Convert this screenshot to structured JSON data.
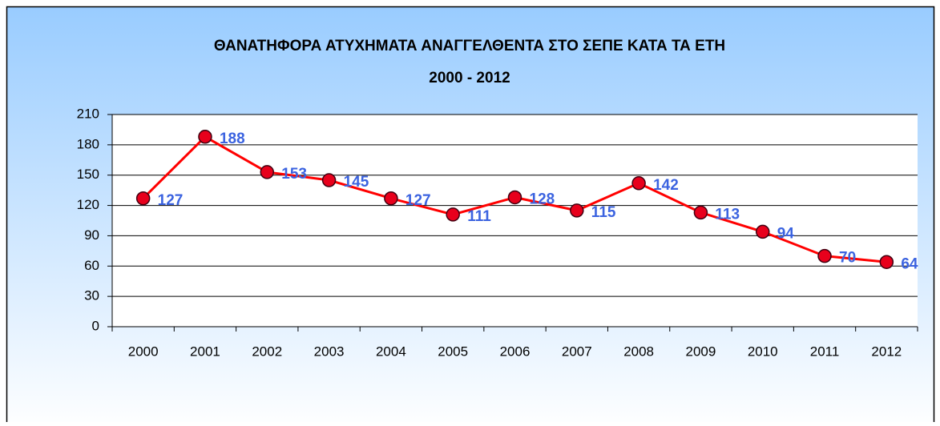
{
  "chart_data": {
    "type": "line",
    "title": "ΘΑΝΑΤΗΦΟΡΑ ΑΤΥΧΗΜΑΤΑ ΑΝΑΓΓΕΛΘΕΝΤΑ ΣΤΟ ΣΕΠΕ ΚΑΤΑ ΤΑ ΕΤΗ",
    "subtitle": "2000 - 2012",
    "categories": [
      "2000",
      "2001",
      "2002",
      "2003",
      "2004",
      "2005",
      "2006",
      "2007",
      "2008",
      "2009",
      "2010",
      "2011",
      "2012"
    ],
    "values": [
      127,
      188,
      153,
      145,
      127,
      111,
      128,
      115,
      142,
      113,
      94,
      70,
      64
    ],
    "color": "#ff0000",
    "marker_color": "#e8001c",
    "label_color": "#3b63e0",
    "ylim": [
      0,
      210
    ],
    "yticks": [
      0,
      30,
      60,
      90,
      120,
      150,
      180,
      210
    ],
    "grid": true
  }
}
